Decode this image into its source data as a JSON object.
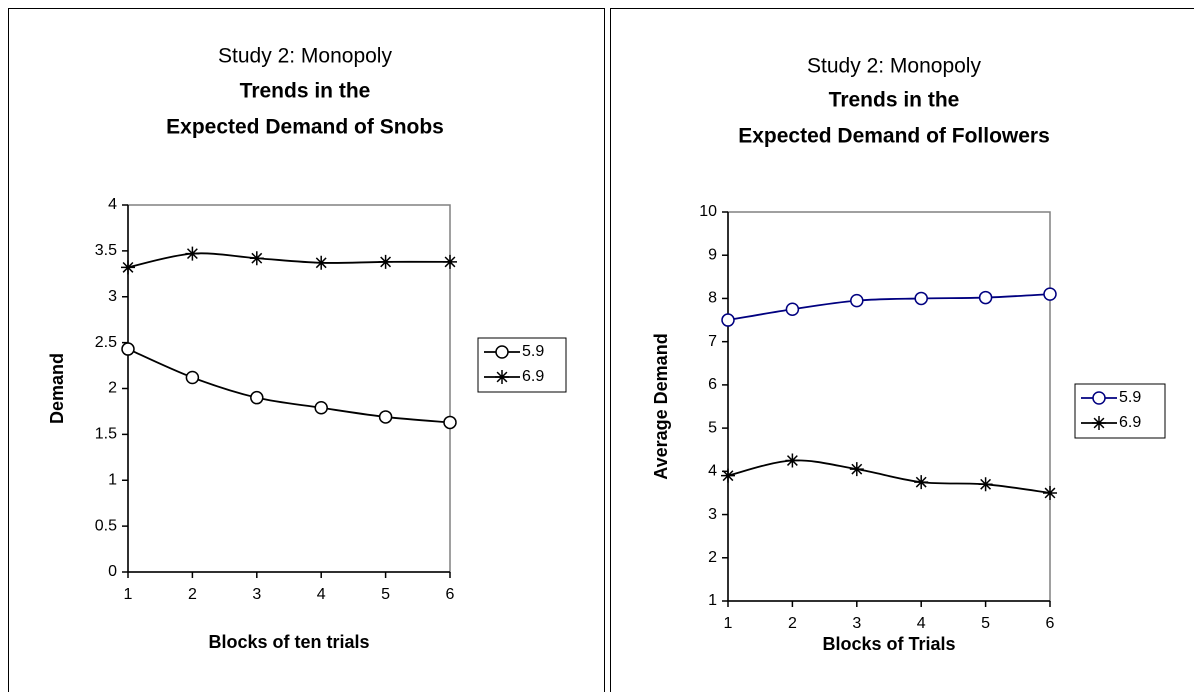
{
  "chart_data": [
    {
      "type": "line",
      "title": "Study 2: Monopoly",
      "subtitle_lines": [
        "Trends in the",
        "Expected Demand of Snobs"
      ],
      "x_label": "Blocks of ten trials",
      "y_label": "Demand",
      "x": [
        1,
        2,
        3,
        4,
        5,
        6
      ],
      "xlim": [
        1,
        6
      ],
      "xticks": [
        1,
        2,
        3,
        4,
        5,
        6
      ],
      "ylim": [
        0,
        4
      ],
      "yticks": [
        0,
        0.5,
        1,
        1.5,
        2,
        2.5,
        3,
        3.5,
        4
      ],
      "legend": "right",
      "smooth": true,
      "series": [
        {
          "name": "5.9",
          "color": "#000000",
          "marker": "circle",
          "values": [
            2.43,
            2.12,
            1.9,
            1.79,
            1.69,
            1.63
          ]
        },
        {
          "name": "6.9",
          "color": "#000000",
          "marker": "asterisk",
          "values": [
            3.32,
            3.47,
            3.42,
            3.37,
            3.38,
            3.38
          ]
        }
      ]
    },
    {
      "type": "line",
      "title": "Study 2: Monopoly",
      "subtitle_lines": [
        "Trends in the",
        "Expected Demand of Followers"
      ],
      "x_label": "Blocks of Trials",
      "y_label": "Average Demand",
      "x": [
        1,
        2,
        3,
        4,
        5,
        6
      ],
      "xlim": [
        1,
        6
      ],
      "xticks": [
        1,
        2,
        3,
        4,
        5,
        6
      ],
      "ylim": [
        1,
        10
      ],
      "yticks": [
        1,
        2,
        3,
        4,
        5,
        6,
        7,
        8,
        9,
        10
      ],
      "legend": "right",
      "smooth": true,
      "series": [
        {
          "name": "5.9",
          "color": "#000080",
          "marker": "circle",
          "values": [
            7.5,
            7.75,
            7.95,
            8.0,
            8.02,
            8.1
          ]
        },
        {
          "name": "6.9",
          "color": "#000000",
          "marker": "asterisk",
          "values": [
            3.9,
            4.25,
            4.05,
            3.75,
            3.7,
            3.5
          ]
        }
      ]
    }
  ]
}
